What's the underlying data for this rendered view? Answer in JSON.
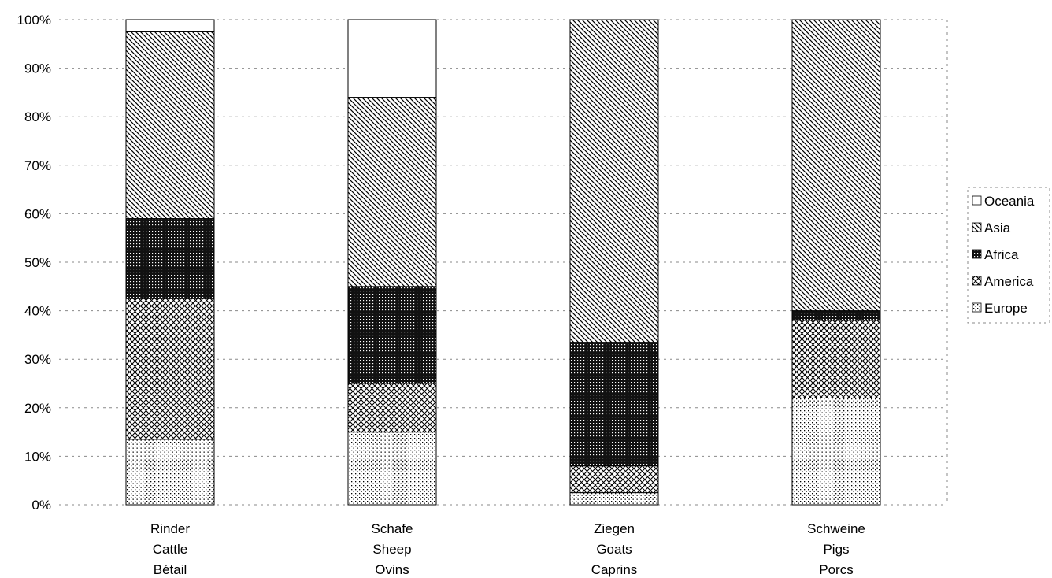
{
  "chart_data": {
    "type": "bar",
    "stacked": true,
    "categories": [
      [
        "Rinder",
        "Cattle",
        "Bétail"
      ],
      [
        "Schafe",
        "Sheep",
        "Ovins"
      ],
      [
        "Ziegen",
        "Goats",
        "Caprins"
      ],
      [
        "Schweine",
        "Pigs",
        "Porcs"
      ]
    ],
    "series": [
      {
        "name": "Europe",
        "pattern": "dots",
        "values": [
          13.5,
          15.0,
          2.5,
          22.0
        ]
      },
      {
        "name": "America",
        "pattern": "crosshatch",
        "values": [
          29.0,
          10.0,
          5.5,
          16.0
        ]
      },
      {
        "name": "Africa",
        "pattern": "dense",
        "values": [
          16.5,
          20.0,
          25.5,
          2.0
        ]
      },
      {
        "name": "Asia",
        "pattern": "diagonal",
        "values": [
          38.5,
          39.0,
          66.5,
          60.0
        ]
      },
      {
        "name": "Oceania",
        "pattern": "blank",
        "values": [
          2.5,
          16.0,
          0.0,
          0.0
        ]
      }
    ],
    "legend_order": [
      "Oceania",
      "Asia",
      "Africa",
      "America",
      "Europe"
    ],
    "y_ticks": [
      "0%",
      "10%",
      "20%",
      "30%",
      "40%",
      "50%",
      "60%",
      "70%",
      "80%",
      "90%",
      "100%"
    ],
    "ylim": [
      0,
      100
    ],
    "grid": true,
    "legend_position": "right"
  }
}
